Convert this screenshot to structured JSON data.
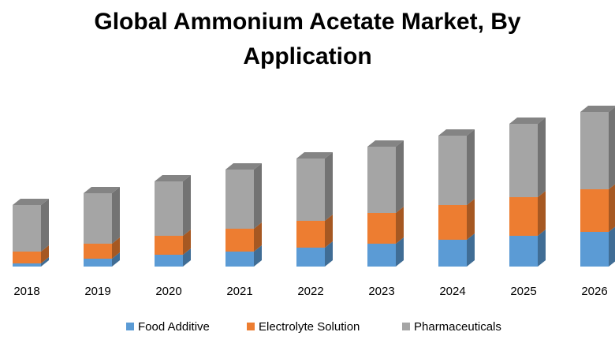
{
  "chart_data": {
    "type": "bar3d_stacked",
    "title": "Global Ammonium Acetate Market, By Application",
    "categories": [
      "2018",
      "2019",
      "2020",
      "2021",
      "2022",
      "2023",
      "2024",
      "2025",
      "2026"
    ],
    "series": [
      {
        "name": "Food Additive",
        "color": "#5b9bd5",
        "values": [
          4,
          10,
          15,
          19,
          24,
          29,
          34,
          39,
          44
        ]
      },
      {
        "name": "Electrolyte Solution",
        "color": "#ed7d31",
        "values": [
          15,
          19,
          24,
          29,
          34,
          39,
          44,
          49,
          54
        ]
      },
      {
        "name": "Pharmaceuticals",
        "color": "#a5a5a5",
        "values": [
          59,
          64,
          69,
          75,
          79,
          84,
          88,
          93,
          98
        ]
      }
    ]
  }
}
